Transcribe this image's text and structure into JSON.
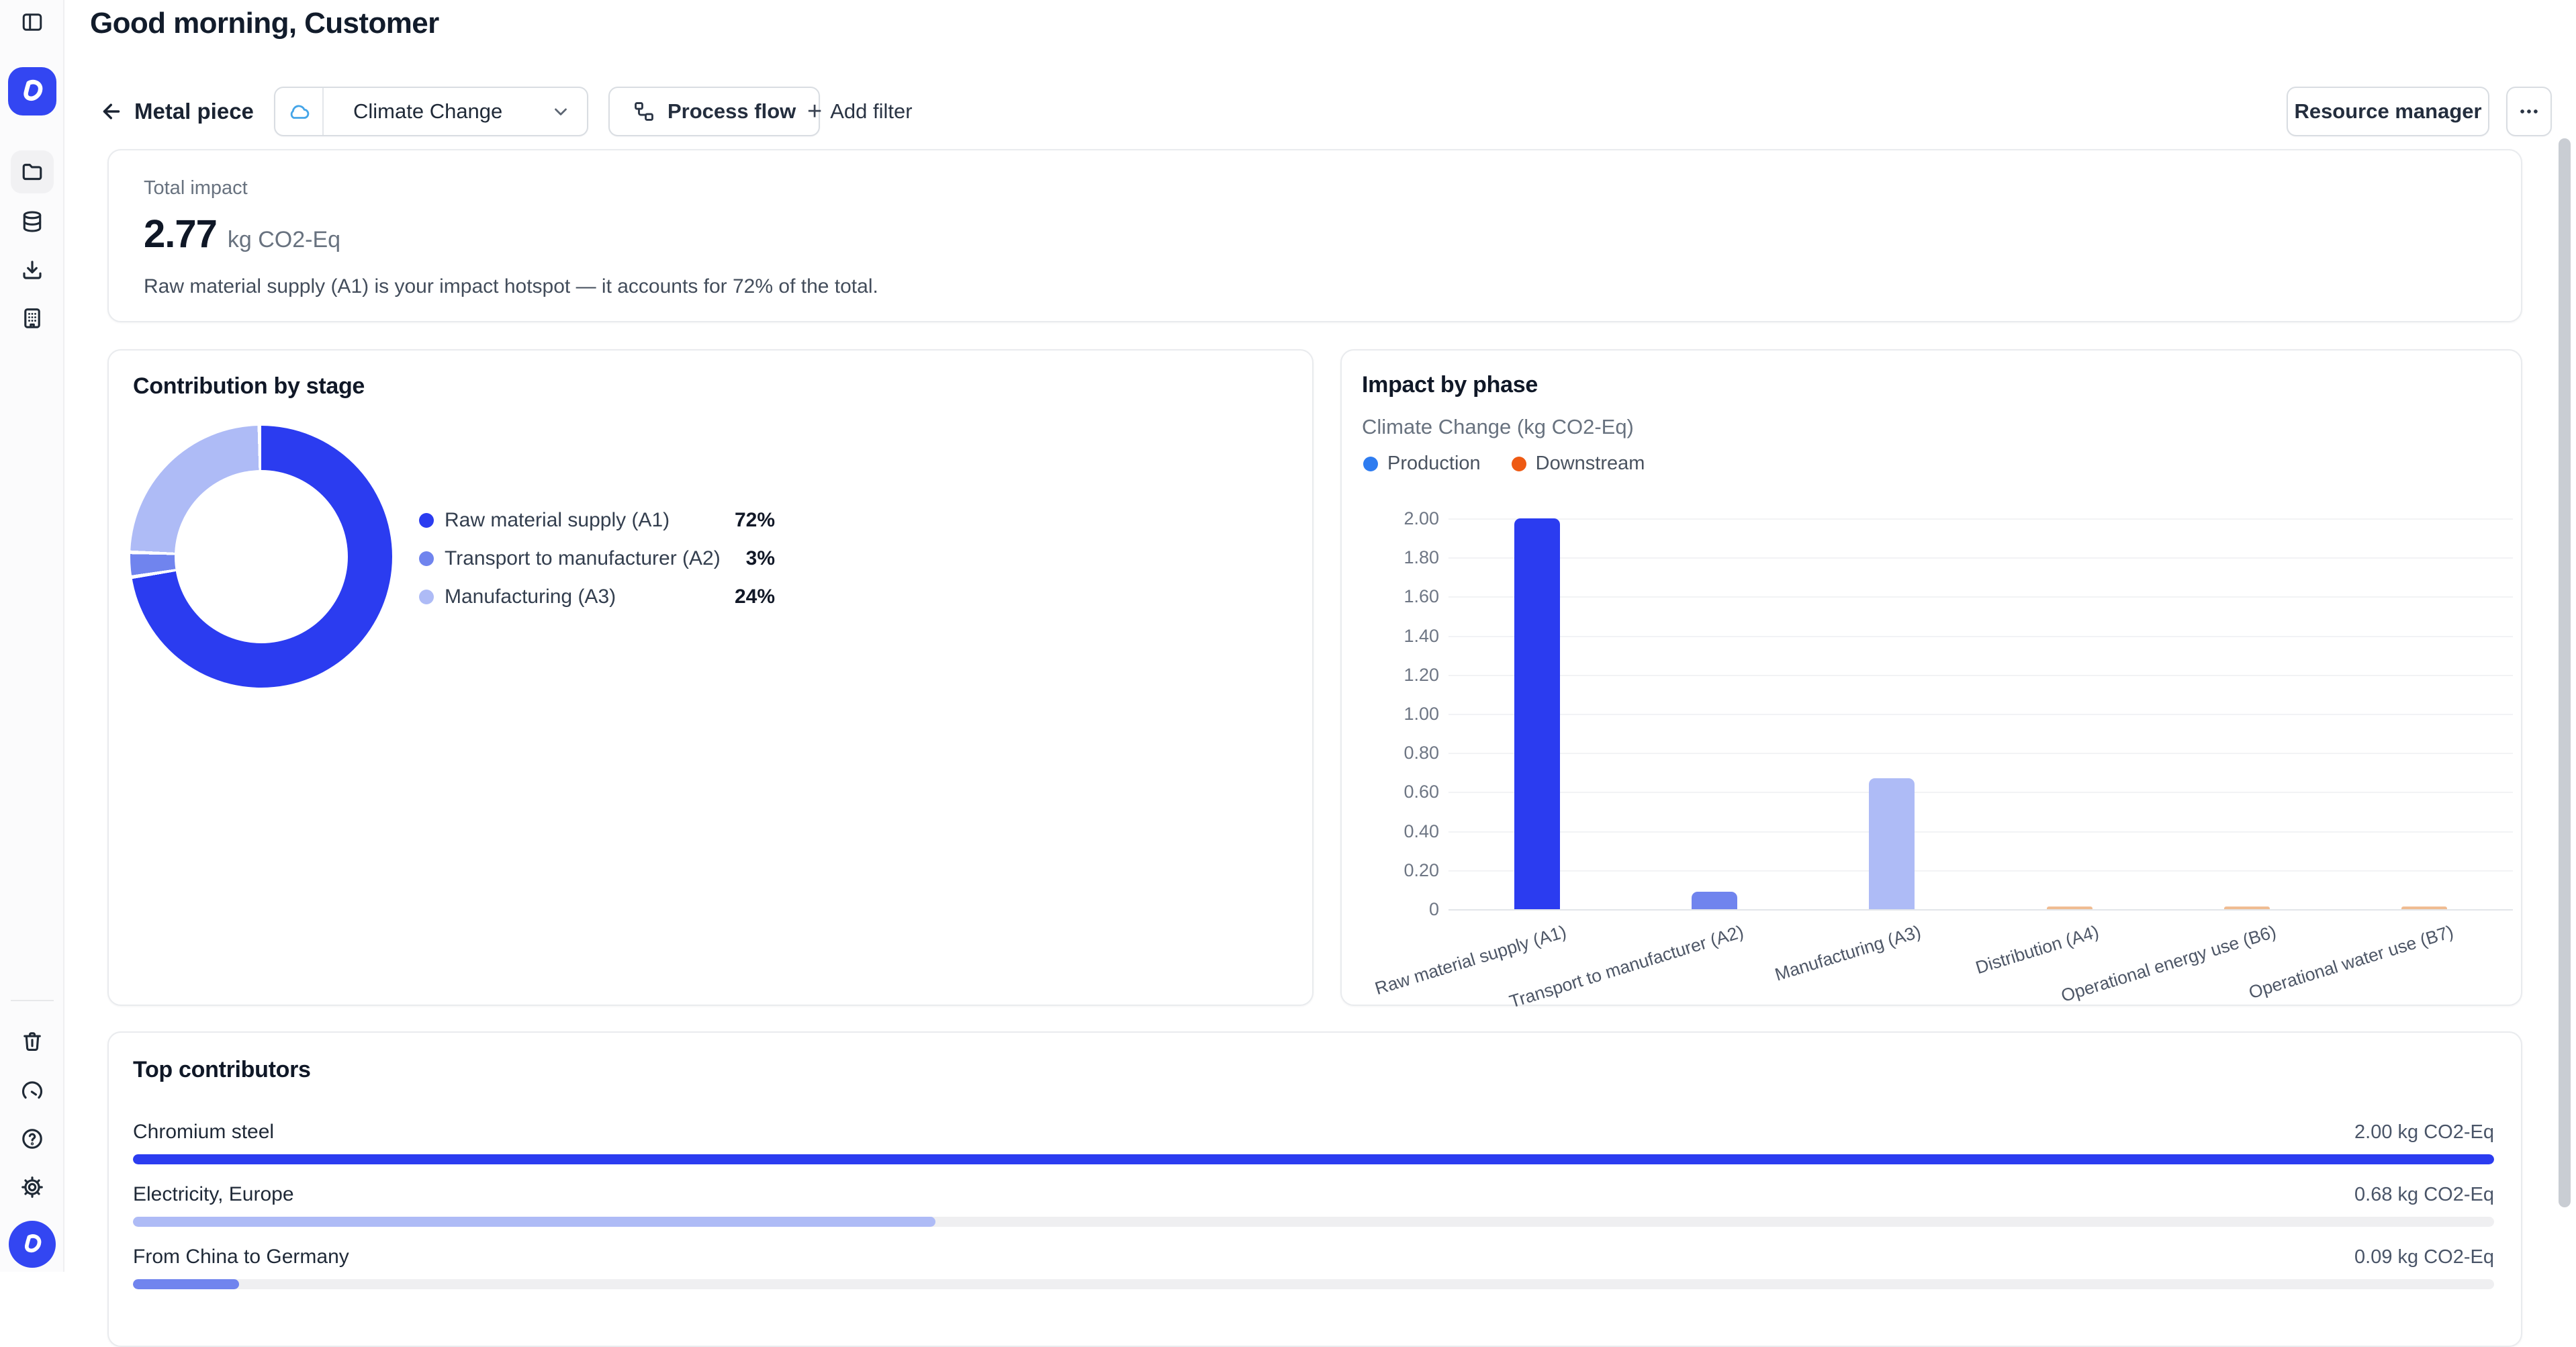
{
  "page": {
    "greeting": "Good morning, Customer"
  },
  "toolbar": {
    "back_label": "Metal piece",
    "metric_dropdown": {
      "value": "Climate Change",
      "icon": "cloud-icon"
    },
    "process_flow_label": "Process flow",
    "add_filter_label": "Add filter",
    "resource_manager_label": "Resource manager"
  },
  "sidebar": {
    "top_icons": [
      "panel-toggle-icon",
      "app-logo",
      "folder-icon",
      "database-icon",
      "import-icon",
      "organization-icon"
    ],
    "bottom_icons": [
      "trash-icon",
      "gauge-icon",
      "help-icon",
      "settings-icon",
      "user-avatar"
    ]
  },
  "summary": {
    "label": "Total impact",
    "value": "2.77",
    "unit": "kg CO2-Eq",
    "insight": "Raw material supply (A1) is your impact hotspot — it accounts for 72% of the total."
  },
  "contribution_by_stage": {
    "title": "Contribution by stage",
    "chart_data": {
      "type": "pie",
      "donut": true,
      "slices": [
        {
          "label": "Raw material supply (A1)",
          "percent": 72,
          "color": "#2b3cf0"
        },
        {
          "label": "Transport to manufacturer (A2)",
          "percent": 3,
          "color": "#7084ee"
        },
        {
          "label": "Manufacturing (A3)",
          "percent": 24,
          "color": "#aebbf6"
        }
      ]
    }
  },
  "impact_by_phase": {
    "title": "Impact by phase",
    "subtitle": "Climate Change (kg CO2-Eq)",
    "legend": [
      {
        "label": "Production",
        "color": "#2e7cf0"
      },
      {
        "label": "Downstream",
        "color": "#ee5a13"
      }
    ],
    "chart_data": {
      "type": "bar",
      "categories": [
        "Raw material supply (A1)",
        "Transport to manufacturer (A2)",
        "Manufacturing (A3)",
        "Distribution (A4)",
        "Operational energy use (B6)",
        "Operational water use (B7)"
      ],
      "values": [
        2.0,
        0.09,
        0.67,
        0.01,
        0.01,
        0.01
      ],
      "bar_colors": [
        "#2b3cf0",
        "#7084ee",
        "#aebbf6",
        "#f0bc92",
        "#f0bc92",
        "#f0bc92"
      ],
      "phases": [
        "Production",
        "Production",
        "Production",
        "Downstream",
        "Downstream",
        "Downstream"
      ],
      "ylabel": "kg CO2-Eq",
      "ylim": [
        0,
        2.0
      ],
      "yticks": [
        "2.00",
        "1.80",
        "1.60",
        "1.40",
        "1.20",
        "1.00",
        "0.80",
        "0.60",
        "0.40",
        "0.20",
        "0"
      ],
      "grid": true
    }
  },
  "top_contributors": {
    "title": "Top contributors",
    "max_value": 2.0,
    "items": [
      {
        "label": "Chromium steel",
        "value": 2.0,
        "value_label": "2.00 kg CO2-Eq",
        "color": "#2b3cf0"
      },
      {
        "label": "Electricity, Europe",
        "value": 0.68,
        "value_label": "0.68 kg CO2-Eq",
        "color": "#aebbf6"
      },
      {
        "label": "From China to Germany",
        "value": 0.09,
        "value_label": "0.09 kg CO2-Eq",
        "color": "#7084ee"
      }
    ]
  }
}
